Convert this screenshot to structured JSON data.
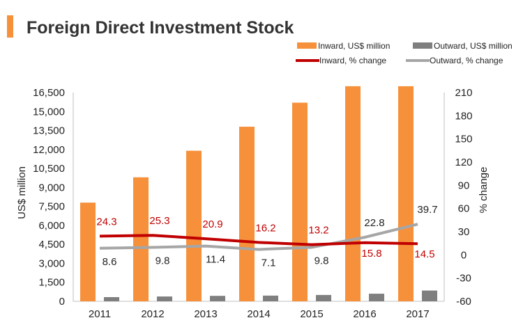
{
  "colors": {
    "accent": "#f7903a",
    "inward_bar": "#f7903a",
    "outward_bar": "#7f7f7f",
    "inward_line": "#c00000",
    "outward_line": "#a6a6a6",
    "inward_label": "#c00000",
    "outward_label": "#222222"
  },
  "chart_data": {
    "type": "bar",
    "title": "Foreign Direct Investment Stock",
    "categories": [
      "2011",
      "2012",
      "2013",
      "2014",
      "2015",
      "2016",
      "2017"
    ],
    "series": [
      {
        "name": "Inward, US$ million",
        "kind": "bar",
        "axis": "left",
        "values": [
          7800,
          9800,
          11900,
          13800,
          15700,
          17000,
          17000
        ]
      },
      {
        "name": "Outward, US$ million",
        "kind": "bar",
        "axis": "left",
        "values": [
          330,
          380,
          430,
          450,
          500,
          600,
          850
        ]
      },
      {
        "name": "Inward, % change",
        "kind": "line",
        "axis": "right",
        "values": [
          24.3,
          25.3,
          20.9,
          16.2,
          13.2,
          15.8,
          14.5
        ],
        "labels": [
          "24.3",
          "25.3",
          "20.9",
          "16.2",
          "13.2",
          "15.8",
          "14.5"
        ]
      },
      {
        "name": "Outward, % change",
        "kind": "line",
        "axis": "right",
        "values": [
          8.6,
          9.8,
          11.4,
          7.1,
          9.8,
          22.8,
          39.7
        ],
        "labels": [
          "8.6",
          "9.8",
          "11.4",
          "7.1",
          "9.8",
          "22.8",
          "39.7"
        ]
      }
    ],
    "ylabel": "US$ million",
    "y2label": "% change",
    "ylim": [
      0,
      16500
    ],
    "y2lim": [
      -60,
      210
    ],
    "yticks": [
      "0",
      "1,500",
      "3,000",
      "4,500",
      "6,000",
      "7,500",
      "9,000",
      "10,500",
      "12,000",
      "13,500",
      "15,000",
      "16,500"
    ],
    "y2ticks": [
      "-60",
      "-30",
      "0",
      "30",
      "60",
      "90",
      "120",
      "150",
      "180",
      "210"
    ],
    "grid": false,
    "legend_position": "top-right"
  }
}
